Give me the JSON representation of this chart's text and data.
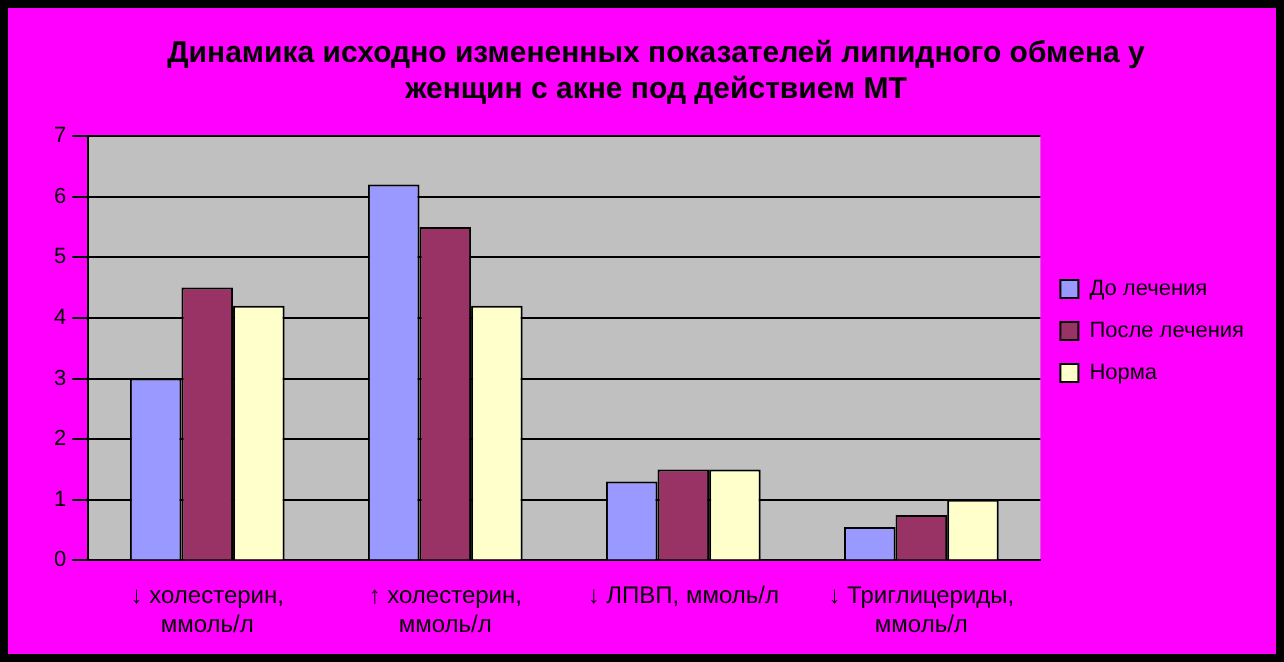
{
  "chart_data": {
    "type": "bar",
    "title": "Динамика исходно измененных показателей липидного обмена у женщин с акне под действием МТ",
    "categories": [
      "↓ холестерин, ммоль/л",
      "↑ холестерин, ммоль/л",
      "↓ ЛПВП, ммоль/л",
      "↓ Триглицериды, ммоль/л"
    ],
    "series": [
      {
        "name": "До лечения",
        "color": "#9999ff",
        "values": [
          3.0,
          6.2,
          1.3,
          0.55
        ]
      },
      {
        "name": "После лечения",
        "color": "#993366",
        "values": [
          4.5,
          5.5,
          1.5,
          0.75
        ]
      },
      {
        "name": "Норма",
        "color": "#ffffcc",
        "values": [
          4.2,
          4.2,
          1.5,
          1.0
        ]
      }
    ],
    "ylim": [
      0,
      7
    ],
    "yticks": [
      0,
      1,
      2,
      3,
      4,
      5,
      6,
      7
    ],
    "grid": "y",
    "legend": "right"
  }
}
